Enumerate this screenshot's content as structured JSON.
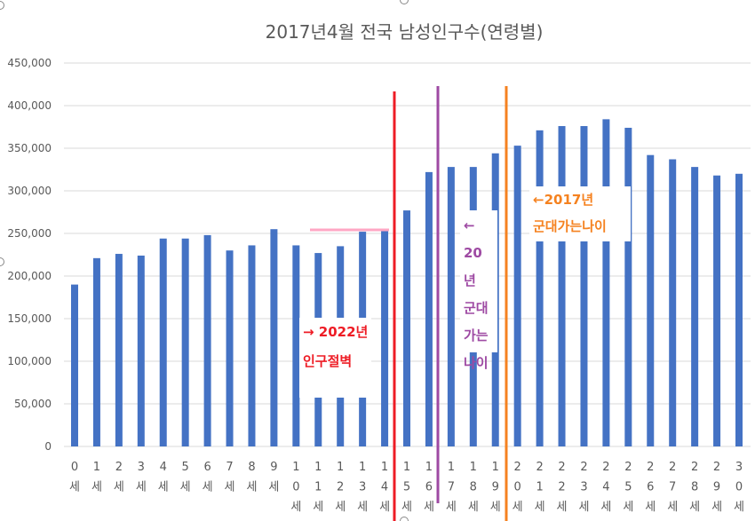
{
  "chart_data": {
    "type": "bar",
    "title": "2017년4월 전국 남성인구수(연령별)",
    "categories": [
      "0세",
      "1세",
      "2세",
      "3세",
      "4세",
      "5세",
      "6세",
      "7세",
      "8세",
      "9세",
      "10세",
      "11세",
      "12세",
      "13세",
      "14세",
      "15세",
      "16세",
      "17세",
      "18세",
      "19세",
      "20세",
      "21세",
      "22세",
      "23세",
      "24세",
      "25세",
      "26세",
      "27세",
      "28세",
      "29세",
      "30세"
    ],
    "values": [
      190000,
      221000,
      226000,
      224000,
      244000,
      244000,
      248000,
      230000,
      236000,
      255000,
      236000,
      227000,
      235000,
      252000,
      253000,
      277000,
      322000,
      328000,
      328000,
      344000,
      353000,
      371000,
      376000,
      376000,
      384000,
      374000,
      342000,
      337000,
      328000,
      318000,
      320000
    ],
    "ylim": [
      0,
      450000
    ],
    "yticks": [
      "0",
      "50,000",
      "100,000",
      "150,000",
      "200,000",
      "250,000",
      "300,000",
      "350,000",
      "400,000",
      "450,000"
    ],
    "grid": true,
    "bar_color": "#4472C4",
    "annotations": [
      {
        "text_lines": [
          "→ 2022년",
          "인구절벽"
        ],
        "color": "#EE1C25"
      },
      {
        "text_lines": [
          "←",
          "20년",
          "군대",
          "가는",
          "나이"
        ],
        "color": "#9E4AA3"
      },
      {
        "text_lines": [
          "←2017년",
          "군대가는나이"
        ],
        "color": "#F58220"
      }
    ],
    "markers": {
      "red_line_color": "#EE1C25",
      "purple_line_color": "#9E4AA3",
      "orange_line_color": "#F58220",
      "pink_line_color": "#FFA7C4"
    }
  }
}
